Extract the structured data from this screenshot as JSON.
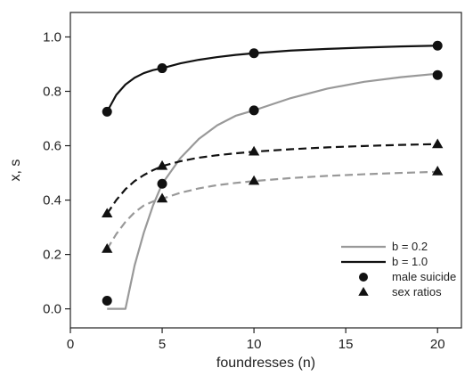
{
  "chart_data": {
    "type": "line",
    "xlabel": "foundresses (n)",
    "ylabel": "x, s",
    "xlim": [
      0,
      21.3
    ],
    "ylim": [
      -0.07,
      1.09
    ],
    "xticks": [
      0,
      5,
      10,
      15,
      20
    ],
    "yticks": [
      0.0,
      0.2,
      0.4,
      0.6,
      0.8,
      1.0
    ],
    "ytick_labels": [
      "0.0",
      "0.2",
      "0.4",
      "0.6",
      "0.8",
      "1.0"
    ],
    "grid": false,
    "legend_position": "bottom-right",
    "legend": [
      {
        "label": "b = 0.2",
        "kind": "line",
        "color": "#999999",
        "dash": "solid"
      },
      {
        "label": "b = 1.0",
        "kind": "line",
        "color": "#111111",
        "dash": "solid"
      },
      {
        "label": "male suicide",
        "kind": "marker",
        "marker": "circle",
        "color": "#111111"
      },
      {
        "label": "sex ratios",
        "kind": "marker",
        "marker": "triangle",
        "color": "#111111"
      }
    ],
    "series": [
      {
        "b": "1.0",
        "quantity": "male suicide",
        "style": "solid",
        "color": "#111111",
        "marker": "circle",
        "x": [
          2,
          5,
          10,
          20
        ],
        "y": [
          0.725,
          0.885,
          0.94,
          0.968
        ]
      },
      {
        "b": "0.2",
        "quantity": "male suicide",
        "style": "solid",
        "color": "#999999",
        "marker": "circle",
        "x": [
          2,
          5,
          10,
          20
        ],
        "y": [
          0.03,
          0.46,
          0.73,
          0.86
        ]
      },
      {
        "b": "1.0",
        "quantity": "sex ratios",
        "style": "dashed",
        "color": "#111111",
        "marker": "triangle",
        "x": [
          2,
          5,
          10,
          20
        ],
        "y": [
          0.35,
          0.525,
          0.578,
          0.605
        ]
      },
      {
        "b": "0.2",
        "quantity": "sex ratios",
        "style": "dashed",
        "color": "#999999",
        "marker": "triangle",
        "x": [
          2,
          5,
          10,
          20
        ],
        "y": [
          0.22,
          0.405,
          0.47,
          0.505
        ]
      }
    ],
    "curves": [
      {
        "b": "1.0",
        "quantity": "male suicide",
        "style": "solid",
        "color": "#111111",
        "x": [
          2,
          2.5,
          3,
          3.5,
          4,
          4.5,
          5,
          6,
          7,
          8,
          9,
          10,
          12,
          14,
          16,
          18,
          20
        ],
        "y": [
          0.725,
          0.787,
          0.825,
          0.85,
          0.867,
          0.878,
          0.885,
          0.903,
          0.916,
          0.926,
          0.934,
          0.94,
          0.95,
          0.956,
          0.961,
          0.965,
          0.968
        ]
      },
      {
        "b": "0.2",
        "quantity": "male suicide",
        "style": "solid",
        "color": "#999999",
        "x": [
          2,
          3,
          3.5,
          4,
          4.5,
          5,
          6,
          7,
          8,
          9,
          10,
          12,
          14,
          16,
          18,
          20
        ],
        "y": [
          0.0,
          0.0,
          0.16,
          0.28,
          0.38,
          0.46,
          0.555,
          0.625,
          0.675,
          0.71,
          0.73,
          0.775,
          0.81,
          0.835,
          0.852,
          0.865
        ]
      },
      {
        "b": "1.0",
        "quantity": "sex ratios",
        "style": "dashed",
        "color": "#111111",
        "x": [
          2,
          2.5,
          3,
          3.5,
          4,
          4.5,
          5,
          6,
          7,
          8,
          9,
          10,
          12,
          14,
          16,
          18,
          20
        ],
        "y": [
          0.35,
          0.4,
          0.44,
          0.47,
          0.492,
          0.51,
          0.525,
          0.543,
          0.556,
          0.565,
          0.572,
          0.578,
          0.587,
          0.594,
          0.599,
          0.603,
          0.606
        ]
      },
      {
        "b": "0.2",
        "quantity": "sex ratios",
        "style": "dashed",
        "color": "#999999",
        "x": [
          2,
          2.5,
          3,
          3.5,
          4,
          4.5,
          5,
          6,
          7,
          8,
          9,
          10,
          12,
          14,
          16,
          18,
          20
        ],
        "y": [
          0.22,
          0.275,
          0.32,
          0.355,
          0.38,
          0.395,
          0.405,
          0.427,
          0.443,
          0.455,
          0.463,
          0.47,
          0.481,
          0.489,
          0.495,
          0.5,
          0.504
        ]
      }
    ]
  }
}
